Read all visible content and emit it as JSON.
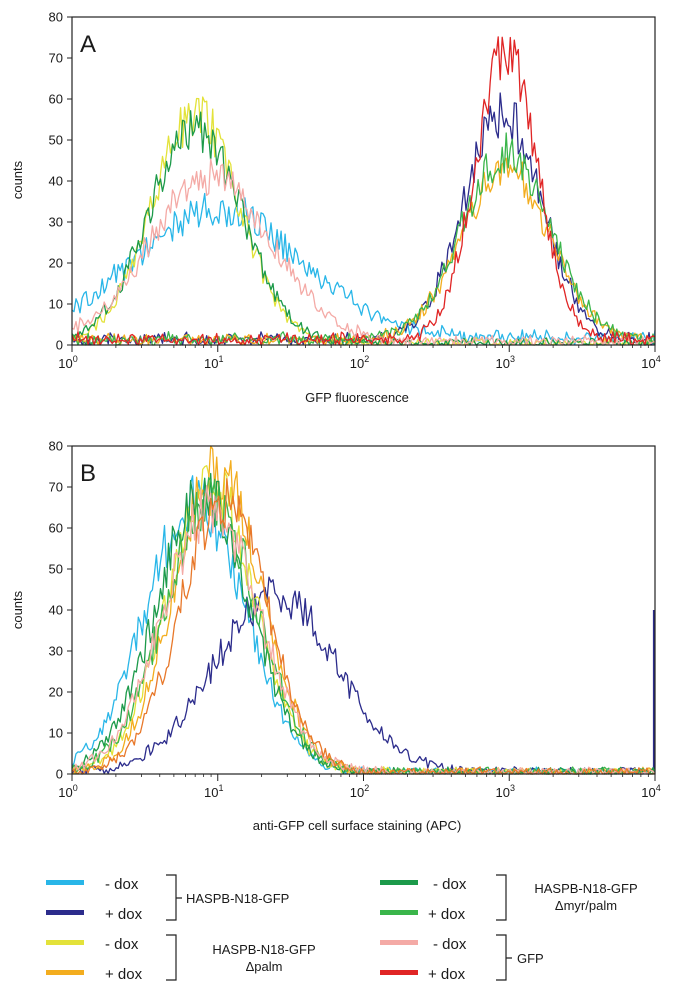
{
  "colors": {
    "HASPB-N18-GFP - dox": "#29b6e8",
    "HASPB-N18-GFP + dox": "#2c2c8c",
    "HASPB-N18-GFP Δpalm - dox": "#e3e23a",
    "HASPB-N18-GFP Δpalm + dox": "#f3ad1f",
    "HASPB-N18-GFP Δmyr/palm - dox": "#1c9a4a",
    "HASPB-N18-GFP Δmyr/palm + dox": "#3ab54a",
    "GFP - dox": "#f4aaa6",
    "GFP + dox": "#e02525",
    "extra_orange": "#e8782a"
  },
  "legend": {
    "minus_label": "- dox",
    "plus_label": "+ dox",
    "groups": [
      {
        "name": "HASPB-N18-GFP",
        "subname": "",
        "minus_color": "#29b6e8",
        "plus_color": "#2c2c8c"
      },
      {
        "name": "HASPB-N18-GFP",
        "subname": "Δpalm",
        "minus_color": "#e3e23a",
        "plus_color": "#f3ad1f"
      },
      {
        "name": "HASPB-N18-GFP",
        "subname": "Δmyr/palm",
        "minus_color": "#1c9a4a",
        "plus_color": "#3ab54a"
      },
      {
        "name": "GFP",
        "subname": "",
        "minus_color": "#f4aaa6",
        "plus_color": "#e02525"
      }
    ]
  },
  "chart_data": [
    {
      "type": "line",
      "panel": "A",
      "xlabel": "GFP fluorescence",
      "ylabel": "counts",
      "xscale": "log",
      "xlim": [
        1,
        10000
      ],
      "ylim": [
        0,
        80
      ],
      "xticks": [
        {
          "base": "10",
          "exp": "0"
        },
        {
          "base": "10",
          "exp": "1"
        },
        {
          "base": "10",
          "exp": "2"
        },
        {
          "base": "10",
          "exp": "3"
        },
        {
          "base": "10",
          "exp": "4"
        }
      ],
      "yticks": [
        0,
        10,
        20,
        30,
        40,
        50,
        60,
        70,
        80
      ],
      "grid": false,
      "series": [
        {
          "legend": "HASPB-N18-GFP - dox",
          "color": "#29b6e8",
          "peaks": [
            {
              "center": 10,
              "height": 31,
              "width": 0.58
            }
          ],
          "floor": 2
        },
        {
          "legend": "HASPB-N18-GFP + dox",
          "color": "#2c2c8c",
          "peaks": [
            {
              "center": 900,
              "height": 55,
              "width": 0.27
            }
          ],
          "floor": 1.5
        },
        {
          "legend": "HASPB-N18-GFP Δpalm - dox",
          "color": "#e3e23a",
          "peaks": [
            {
              "center": 7,
              "height": 56,
              "width": 0.3
            }
          ],
          "floor": 0.5
        },
        {
          "legend": "HASPB-N18-GFP Δpalm + dox",
          "color": "#f3ad1f",
          "peaks": [
            {
              "center": 950,
              "height": 42,
              "width": 0.3
            }
          ],
          "floor": 1.5
        },
        {
          "legend": "HASPB-N18-GFP Δmyr/palm - dox",
          "color": "#1c9a4a",
          "peaks": [
            {
              "center": 7,
              "height": 52,
              "width": 0.32
            }
          ],
          "floor": 0.5
        },
        {
          "legend": "HASPB-N18-GFP Δmyr/palm + dox",
          "color": "#3ab54a",
          "peaks": [
            {
              "center": 950,
              "height": 45,
              "width": 0.3
            }
          ],
          "floor": 1.5
        },
        {
          "legend": "GFP - dox",
          "color": "#f4aaa6",
          "peaks": [
            {
              "center": 9,
              "height": 40,
              "width": 0.42
            }
          ],
          "floor": 1
        },
        {
          "legend": "GFP + dox",
          "color": "#e02525",
          "peaks": [
            {
              "center": 950,
              "height": 70,
              "width": 0.21
            }
          ],
          "floor": 1.5
        }
      ]
    },
    {
      "type": "line",
      "panel": "B",
      "xlabel": "anti-GFP cell surface staining (APC)",
      "ylabel": "counts",
      "xscale": "log",
      "xlim": [
        1,
        10000
      ],
      "ylim": [
        0,
        80
      ],
      "xticks": [
        {
          "base": "10",
          "exp": "0"
        },
        {
          "base": "10",
          "exp": "1"
        },
        {
          "base": "10",
          "exp": "2"
        },
        {
          "base": "10",
          "exp": "3"
        },
        {
          "base": "10",
          "exp": "4"
        }
      ],
      "yticks": [
        0,
        10,
        20,
        30,
        40,
        50,
        60,
        70,
        80
      ],
      "grid": false,
      "series": [
        {
          "legend": "HASPB-N18-GFP - dox",
          "color": "#29b6e8",
          "peaks": [
            {
              "center": 7,
              "height": 66,
              "width": 0.34
            }
          ],
          "floor": 0.5
        },
        {
          "legend": "HASPB-N18-GFP + dox",
          "color": "#2c2c8c",
          "peaks": [
            {
              "center": 25,
              "height": 43,
              "width": 0.42
            }
          ],
          "floor": 0.5,
          "end_spike": 40
        },
        {
          "legend": "HASPB-N18-GFP Δpalm - dox",
          "color": "#e3e23a",
          "peaks": [
            {
              "center": 9,
              "height": 70,
              "width": 0.3
            }
          ],
          "floor": 0.5
        },
        {
          "legend": "HASPB-N18-GFP Δpalm + dox",
          "color": "#f3ad1f",
          "peaks": [
            {
              "center": 10,
              "height": 74,
              "width": 0.3
            }
          ],
          "floor": 0.5
        },
        {
          "legend": "HASPB-N18-GFP Δmyr/palm - dox",
          "color": "#1c9a4a",
          "peaks": [
            {
              "center": 8,
              "height": 68,
              "width": 0.32
            }
          ],
          "floor": 0.5
        },
        {
          "legend": "HASPB-N18-GFP Δmyr/palm + dox",
          "color": "#3ab54a",
          "peaks": [
            {
              "center": 9,
              "height": 66,
              "width": 0.32
            }
          ],
          "floor": 0.5
        },
        {
          "legend": "GFP - dox",
          "color": "#f4aaa6",
          "peaks": [
            {
              "center": 9,
              "height": 64,
              "width": 0.33
            }
          ],
          "floor": 0.5
        },
        {
          "legend": "GFP + dox",
          "color": "#e8782a",
          "peaks": [
            {
              "center": 11,
              "height": 66,
              "width": 0.3
            }
          ],
          "floor": 0.5
        }
      ]
    }
  ]
}
